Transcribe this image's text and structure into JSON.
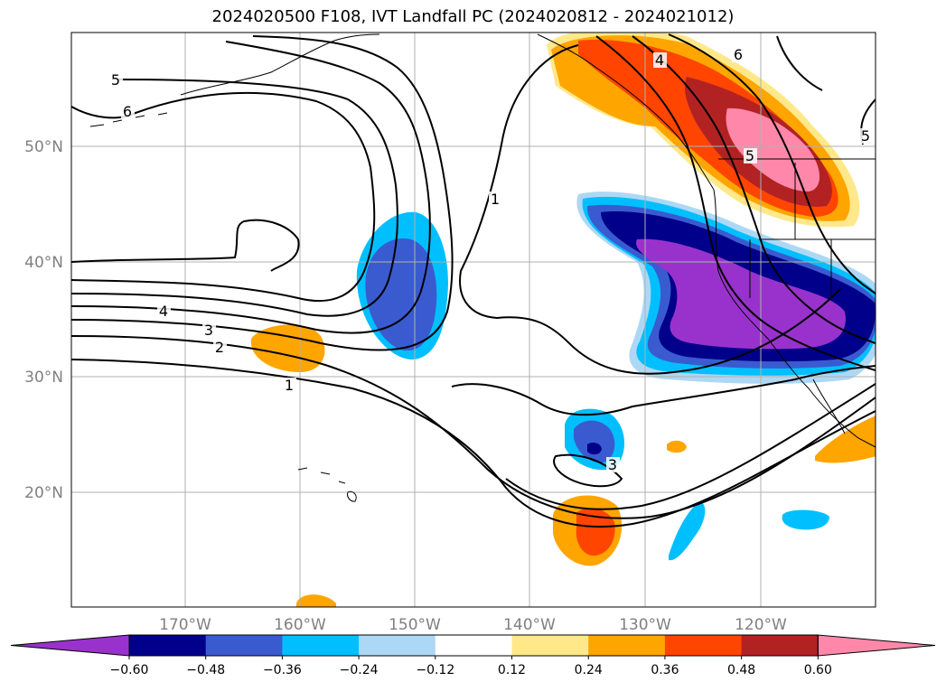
{
  "title": "2024020500 F108, IVT Landfall PC (2024020812 - 2024021012)",
  "map": {
    "lon_labels": [
      "170°W",
      "160°W",
      "150°W",
      "140°W",
      "130°W",
      "120°W"
    ],
    "lat_labels": [
      "50°N",
      "40°N",
      "30°N",
      "20°N"
    ],
    "label_color": "#808080",
    "grid_color": "#b0b0b0",
    "land_outline_color": "#000000"
  },
  "colorbar": {
    "ticks": [
      "−0.60",
      "−0.48",
      "−0.36",
      "−0.24",
      "−0.12",
      "0.12",
      "0.24",
      "0.36",
      "0.48",
      "0.60"
    ],
    "colors": [
      "#9932cc",
      "#00008b",
      "#3a5bd0",
      "#00bfff",
      "#add8f5",
      "#ffffff",
      "#ffe88a",
      "#ffa500",
      "#ff4500",
      "#b22222",
      "#ff88aa"
    ]
  },
  "contour_labels": [
    "1",
    "2",
    "3",
    "4",
    "5",
    "6",
    "1",
    "3",
    "4",
    "5",
    "6",
    "5"
  ],
  "contour_color": "#000000"
}
